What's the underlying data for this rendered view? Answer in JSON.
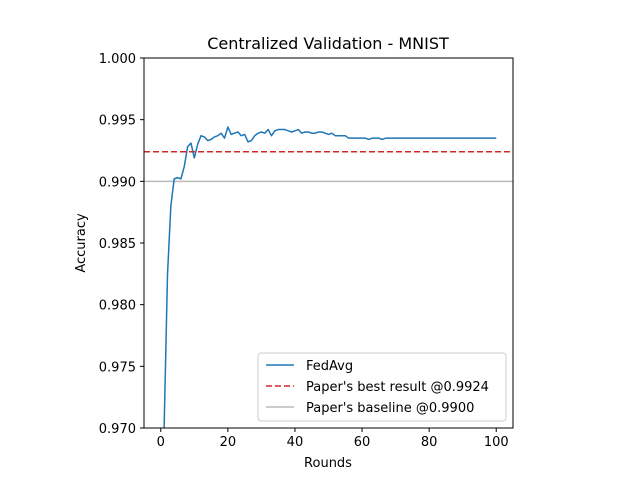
{
  "chart_data": {
    "type": "line",
    "title": "Centralized Validation - MNIST",
    "xlabel": "Rounds",
    "ylabel": "Accuracy",
    "xlim": [
      -5,
      105
    ],
    "ylim": [
      0.97,
      1.0
    ],
    "xticks": [
      0,
      20,
      40,
      60,
      80,
      100
    ],
    "yticks": [
      0.97,
      0.975,
      0.98,
      0.985,
      0.99,
      0.995,
      1.0
    ],
    "ytick_labels": [
      "0.970",
      "0.975",
      "0.980",
      "0.985",
      "0.990",
      "0.995",
      "1.000"
    ],
    "legend_position": "lower-right",
    "grid": false,
    "series": [
      {
        "name": "FedAvg",
        "style": "solid",
        "color": "#1f77b4",
        "x": [
          1,
          2,
          3,
          4,
          5,
          6,
          7,
          8,
          9,
          10,
          11,
          12,
          13,
          14,
          15,
          16,
          17,
          18,
          19,
          20,
          21,
          22,
          23,
          24,
          25,
          26,
          27,
          28,
          29,
          30,
          31,
          32,
          33,
          34,
          35,
          36,
          37,
          38,
          39,
          40,
          41,
          42,
          43,
          44,
          45,
          46,
          47,
          48,
          49,
          50,
          51,
          52,
          53,
          54,
          55,
          56,
          57,
          58,
          59,
          60,
          61,
          62,
          63,
          64,
          65,
          66,
          67,
          68,
          69,
          70,
          71,
          72,
          73,
          74,
          75,
          76,
          77,
          78,
          79,
          80,
          81,
          82,
          83,
          84,
          85,
          86,
          87,
          88,
          89,
          90,
          91,
          92,
          93,
          94,
          95,
          96,
          97,
          98,
          99,
          100
        ],
        "y": [
          0.97,
          0.9824,
          0.988,
          0.9902,
          0.9903,
          0.9902,
          0.9912,
          0.9928,
          0.9931,
          0.9919,
          0.993,
          0.9937,
          0.9936,
          0.9933,
          0.9934,
          0.9936,
          0.9937,
          0.9939,
          0.9935,
          0.9944,
          0.9938,
          0.9939,
          0.994,
          0.9937,
          0.9938,
          0.9932,
          0.9933,
          0.9937,
          0.9939,
          0.994,
          0.9939,
          0.9942,
          0.9937,
          0.9941,
          0.9942,
          0.9942,
          0.9942,
          0.9941,
          0.994,
          0.9941,
          0.9942,
          0.9939,
          0.994,
          0.994,
          0.9939,
          0.9939,
          0.994,
          0.994,
          0.9939,
          0.9938,
          0.9939,
          0.9937,
          0.9937,
          0.9937,
          0.9937,
          0.9935,
          0.9935,
          0.9935,
          0.9935,
          0.9935,
          0.9935,
          0.9934,
          0.9935,
          0.9935,
          0.9935,
          0.9934,
          0.9935,
          0.9935,
          0.9935,
          0.9935,
          0.9935,
          0.9935,
          0.9935,
          0.9935,
          0.9935,
          0.9935,
          0.9935,
          0.9935,
          0.9935,
          0.9935,
          0.9935,
          0.9935,
          0.9935,
          0.9935,
          0.9935,
          0.9935,
          0.9935,
          0.9935,
          0.9935,
          0.9935,
          0.9935,
          0.9935,
          0.9935,
          0.9935,
          0.9935,
          0.9935,
          0.9935,
          0.9935,
          0.9935,
          0.9935
        ]
      },
      {
        "name": "Paper's best result @0.9924",
        "style": "dashed",
        "color": "#d62728",
        "hline": 0.9924
      },
      {
        "name": "Paper's baseline @0.9900",
        "style": "solid",
        "color": "#bbbbbb",
        "hline": 0.99
      }
    ]
  }
}
